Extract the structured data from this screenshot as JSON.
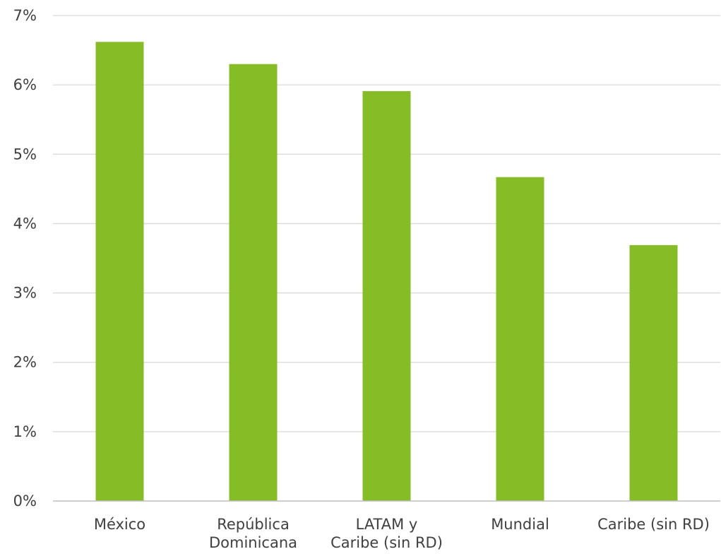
{
  "chart_data": {
    "type": "bar",
    "title": "",
    "xlabel": "",
    "ylabel": "",
    "categories": [
      [
        "México"
      ],
      [
        "República",
        "Dominicana"
      ],
      [
        "LATAM y",
        "Caribe (sin RD)"
      ],
      [
        "Mundial"
      ],
      [
        "Caribe (sin RD)"
      ]
    ],
    "values": [
      6.62,
      6.3,
      5.91,
      4.67,
      3.69
    ],
    "ylim": [
      0,
      7
    ],
    "yticks": [
      0,
      1,
      2,
      3,
      4,
      5,
      6,
      7
    ],
    "ytick_labels": [
      "0%",
      "1%",
      "2%",
      "3%",
      "4%",
      "5%",
      "6%",
      "7%"
    ],
    "grid": true,
    "legend": "none",
    "bar_color": "#86bc25",
    "grid_color": "#d9d9d9",
    "text_color": "#404040"
  }
}
